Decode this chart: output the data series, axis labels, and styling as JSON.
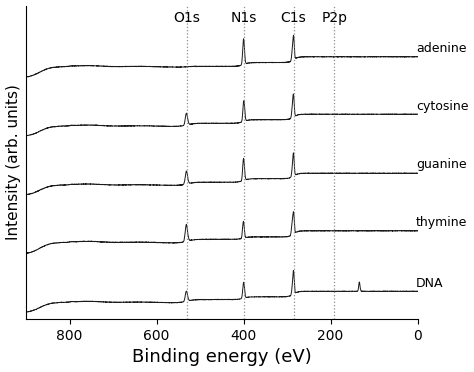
{
  "title": "",
  "xlabel": "Binding energy (eV)",
  "ylabel": "Intensity (arb. units)",
  "xlim": [
    900,
    0
  ],
  "background_color": "#ffffff",
  "line_color": "#1a1a1a",
  "line_width": 0.7,
  "xticks": [
    800,
    600,
    400,
    200,
    0
  ],
  "vlines": [
    {
      "x": 530,
      "label": "O1s"
    },
    {
      "x": 400,
      "label": "N1s"
    },
    {
      "x": 285,
      "label": "C1s"
    },
    {
      "x": 191,
      "label": "P2p"
    }
  ],
  "spectra_labels": [
    "adenine",
    "cytosine",
    "guanine",
    "thymine",
    "DNA"
  ],
  "offsets": [
    4.2,
    3.15,
    2.1,
    1.05,
    0.0
  ],
  "xlabel_fontsize": 13,
  "ylabel_fontsize": 11,
  "tick_fontsize": 10,
  "label_fontsize": 9,
  "vline_label_fontsize": 10,
  "amplitude": 0.75
}
